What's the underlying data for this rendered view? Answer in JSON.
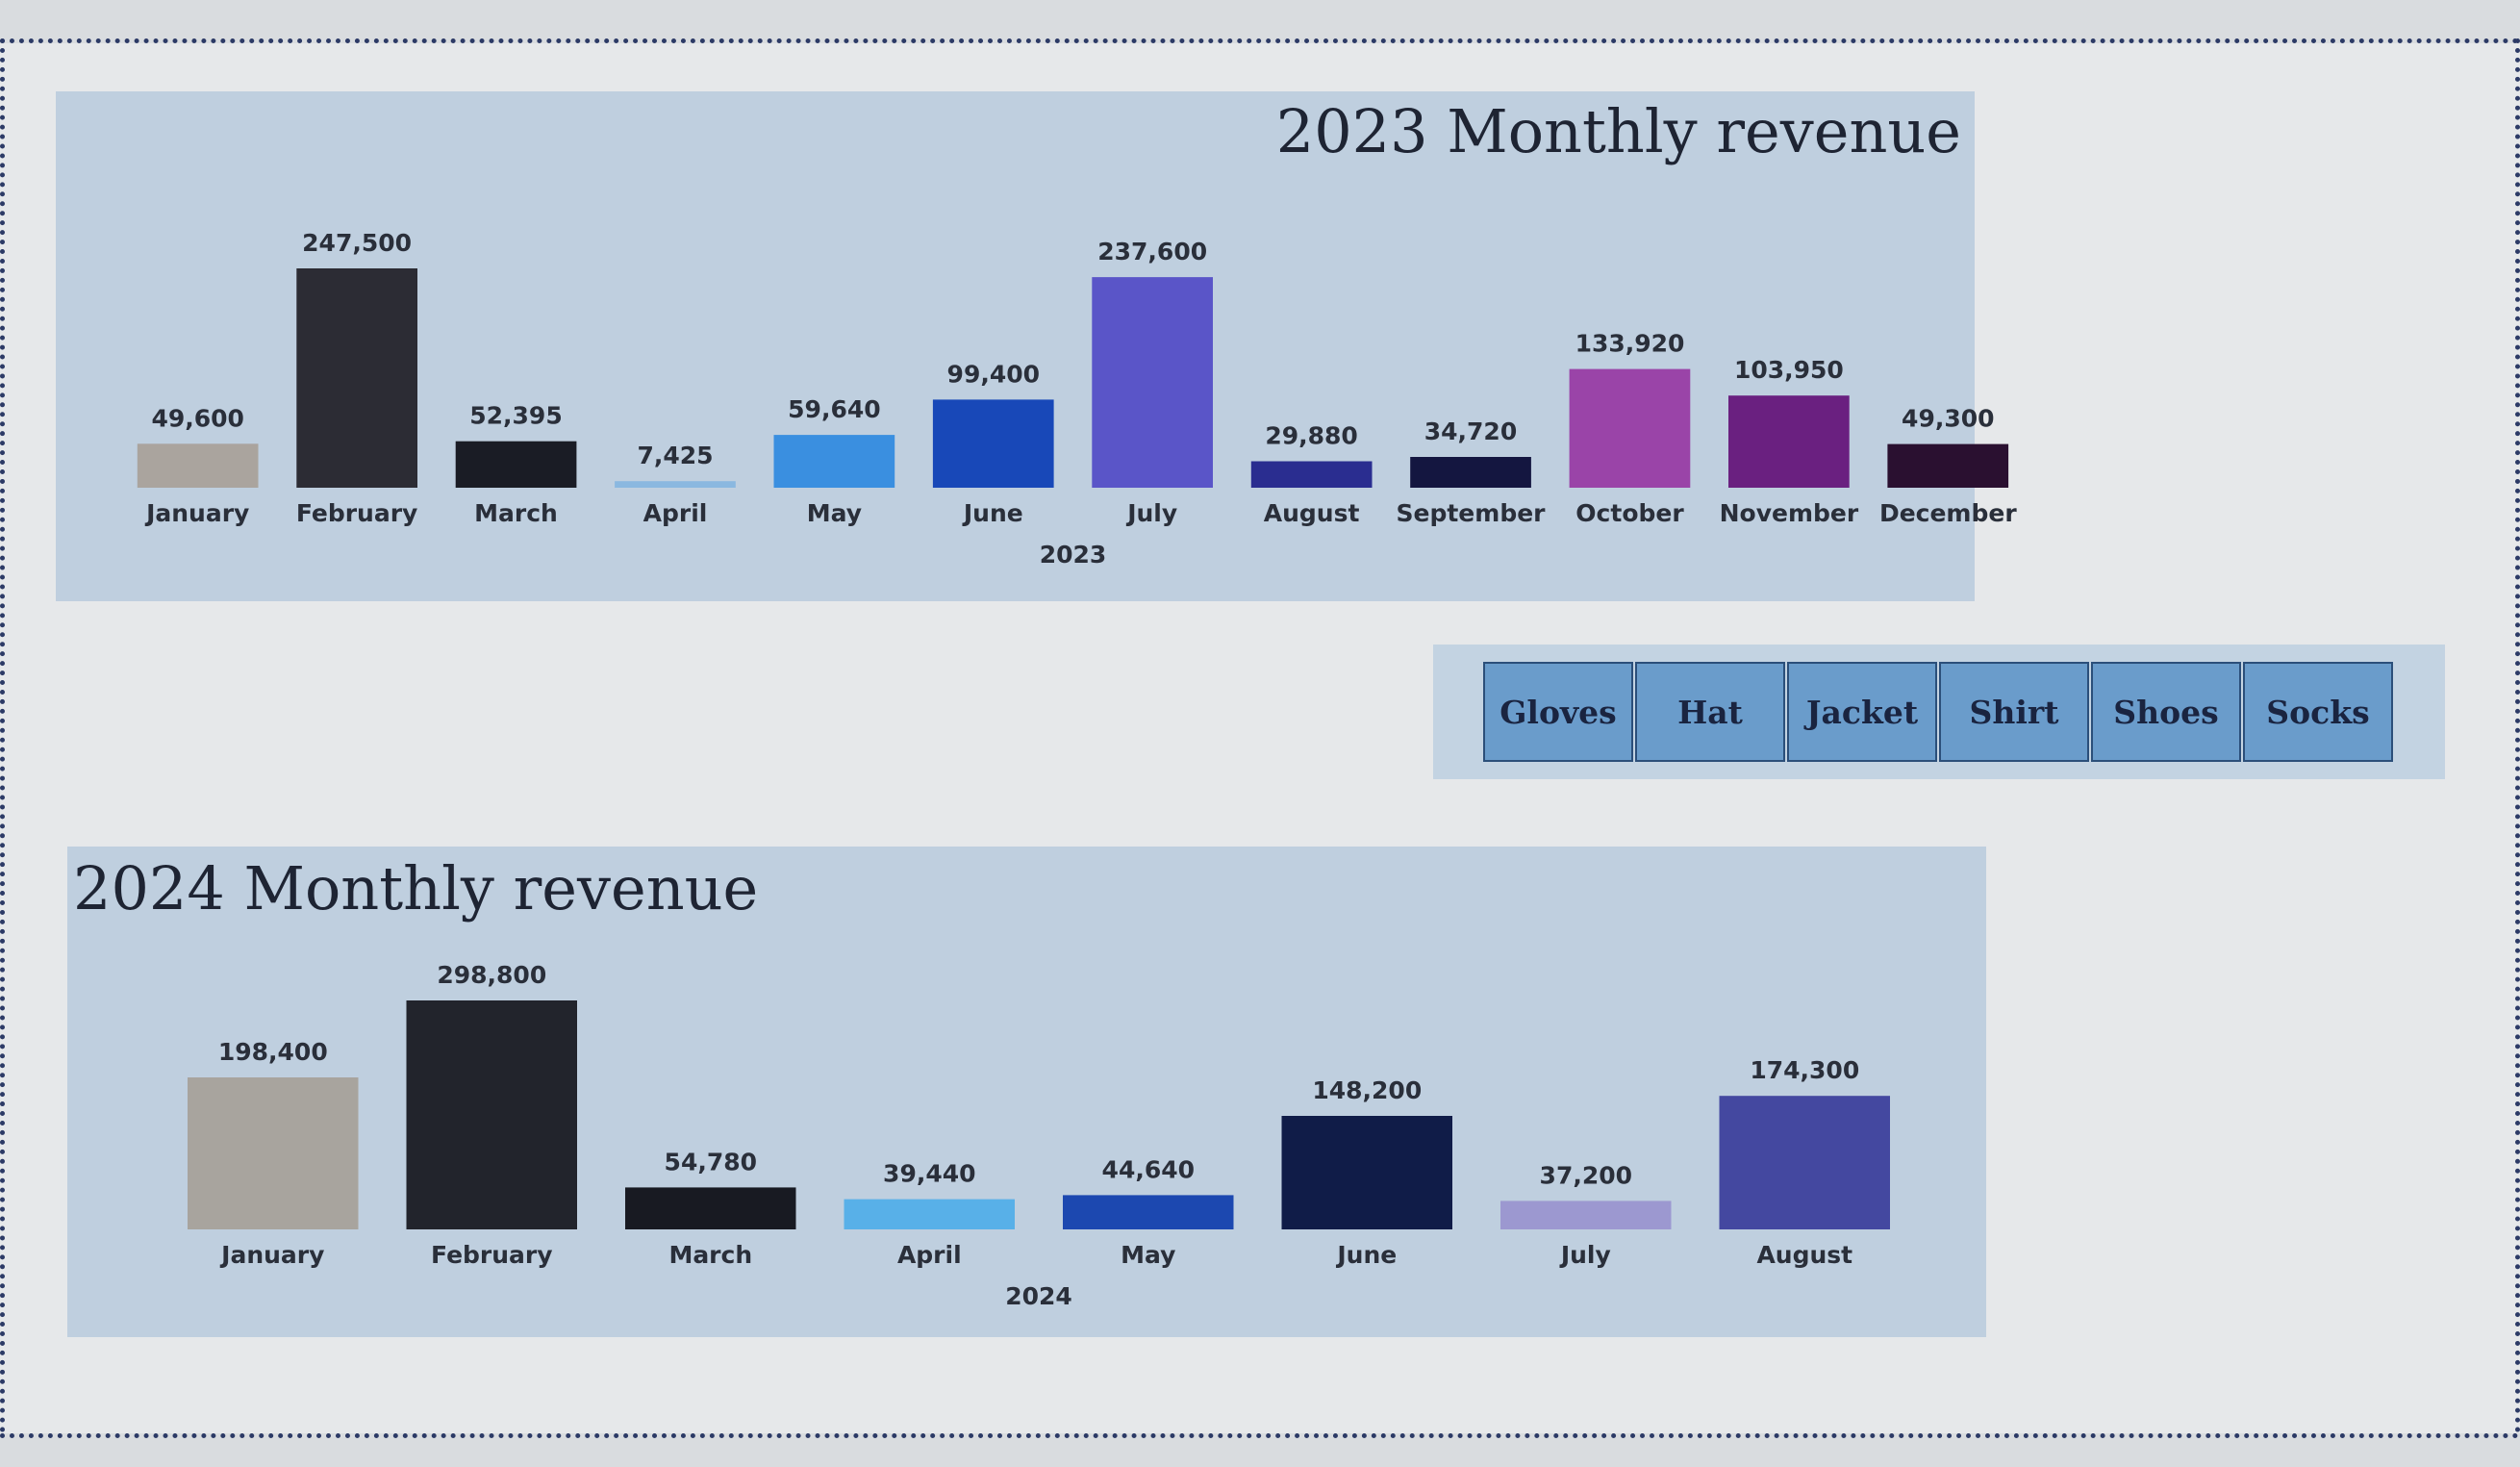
{
  "charts": {
    "c2023": {
      "title": "2023 Monthly revenue",
      "xlabel": "2023"
    },
    "c2024": {
      "title": "2024 Monthly revenue",
      "xlabel": "2024"
    }
  },
  "slicer": {
    "buttons": [
      "Gloves",
      "Hat",
      "Jacket",
      "Shirt",
      "Shoes",
      "Socks"
    ]
  },
  "chart_data": [
    {
      "type": "bar",
      "title": "2023 Monthly revenue",
      "xlabel": "2023",
      "ylabel": "",
      "categories": [
        "January",
        "February",
        "March",
        "April",
        "May",
        "June",
        "July",
        "August",
        "September",
        "October",
        "November",
        "December"
      ],
      "values": [
        49600,
        247500,
        52395,
        7425,
        59640,
        99400,
        237600,
        29880,
        34720,
        133920,
        103950,
        49300
      ],
      "value_labels": [
        "49,600",
        "247,500",
        "52,395",
        "7,425",
        "59,640",
        "99,400",
        "237,600",
        "29,880",
        "34,720",
        "133,920",
        "103,950",
        "49,300"
      ],
      "colors": [
        "#aaa49e",
        "#2c2c34",
        "#1a1c25",
        "#8ab8e0",
        "#3a8fe0",
        "#1848b8",
        "#5a55c8",
        "#2a2d90",
        "#141640",
        "#9a44a8",
        "#6a2080",
        "#2a1030"
      ],
      "ylim": [
        0,
        247500
      ],
      "grid": false,
      "legend": "none"
    },
    {
      "type": "bar",
      "title": "2024 Monthly revenue",
      "xlabel": "2024",
      "ylabel": "",
      "categories": [
        "January",
        "February",
        "March",
        "April",
        "May",
        "June",
        "July",
        "August"
      ],
      "values": [
        198400,
        298800,
        54780,
        39440,
        44640,
        148200,
        37200,
        174300
      ],
      "value_labels": [
        "198,400",
        "298,800",
        "54,780",
        "39,440",
        "44,640",
        "148,200",
        "37,200",
        "174,300"
      ],
      "colors": [
        "#a8a49e",
        "#22242c",
        "#181a22",
        "#58b0e8",
        "#1c48b0",
        "#101c48",
        "#9c98d0",
        "#4448a0"
      ],
      "ylim": [
        0,
        298800
      ],
      "grid": false,
      "legend": "none"
    }
  ]
}
